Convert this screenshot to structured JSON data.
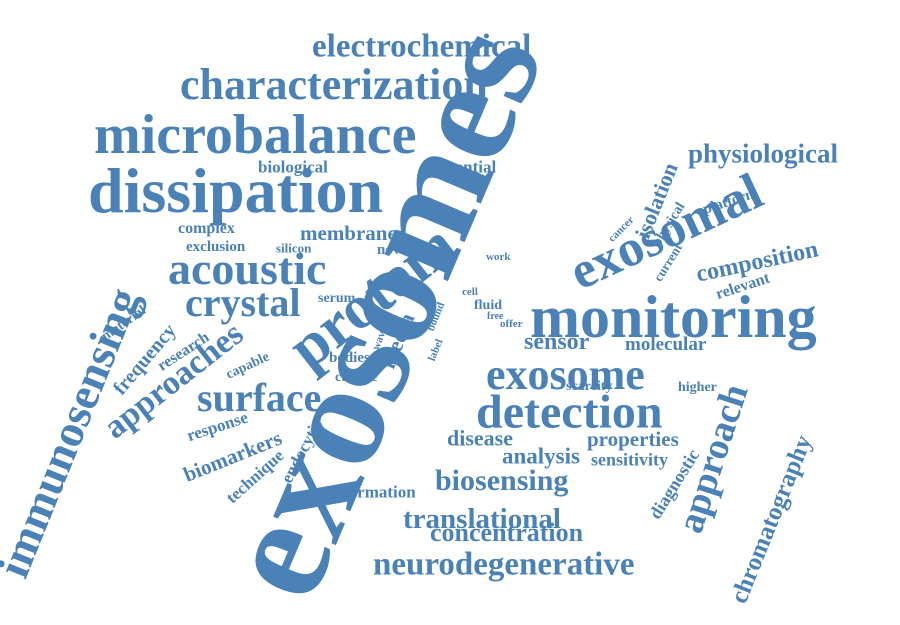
{
  "color": "#4a81b6",
  "words": [
    {
      "text": "exosomes"
    },
    {
      "text": "electrochemical"
    },
    {
      "text": "characterization"
    },
    {
      "text": "microbalance"
    },
    {
      "text": "dissipation"
    },
    {
      "text": "physiological"
    },
    {
      "text": "biological"
    },
    {
      "text": "potential"
    },
    {
      "text": "isolation"
    },
    {
      "text": "physical"
    },
    {
      "text": "platform"
    },
    {
      "text": "cancer"
    },
    {
      "text": "exosomal"
    },
    {
      "text": "complex"
    },
    {
      "text": "membrane"
    },
    {
      "text": "exclusion"
    },
    {
      "text": "silicon"
    },
    {
      "text": "novel"
    },
    {
      "text": "protein"
    },
    {
      "text": "acoustic"
    },
    {
      "text": "work"
    },
    {
      "text": "composition"
    },
    {
      "text": "current"
    },
    {
      "text": "relevant"
    },
    {
      "text": "immunosensing"
    },
    {
      "text": "crystal"
    },
    {
      "text": "serum"
    },
    {
      "text": "size"
    },
    {
      "text": "cell"
    },
    {
      "text": "fluid"
    },
    {
      "text": "free"
    },
    {
      "text": "offer"
    },
    {
      "text": "bound"
    },
    {
      "text": "monitoring"
    },
    {
      "text": "material"
    },
    {
      "text": "frequency"
    },
    {
      "text": "research"
    },
    {
      "text": "approaches"
    },
    {
      "text": "capable"
    },
    {
      "text": "wave"
    },
    {
      "text": "media"
    },
    {
      "text": "label"
    },
    {
      "text": "sensor"
    },
    {
      "text": "molecular"
    },
    {
      "text": "exosome"
    },
    {
      "text": "approach"
    },
    {
      "text": "chromatography"
    },
    {
      "text": "bodies"
    },
    {
      "text": "culture"
    },
    {
      "text": "scarcity"
    },
    {
      "text": "higher"
    },
    {
      "text": "surface"
    },
    {
      "text": "detection"
    },
    {
      "text": "response"
    },
    {
      "text": "biomarkers"
    },
    {
      "text": "technique"
    },
    {
      "text": "endocytic"
    },
    {
      "text": "disease"
    },
    {
      "text": "analysis"
    },
    {
      "text": "properties"
    },
    {
      "text": "sensitivity"
    },
    {
      "text": "diagnostic"
    },
    {
      "text": "biosensing"
    },
    {
      "text": "formation"
    },
    {
      "text": "translational"
    },
    {
      "text": "concentration"
    },
    {
      "text": "neurodegenerative"
    }
  ]
}
